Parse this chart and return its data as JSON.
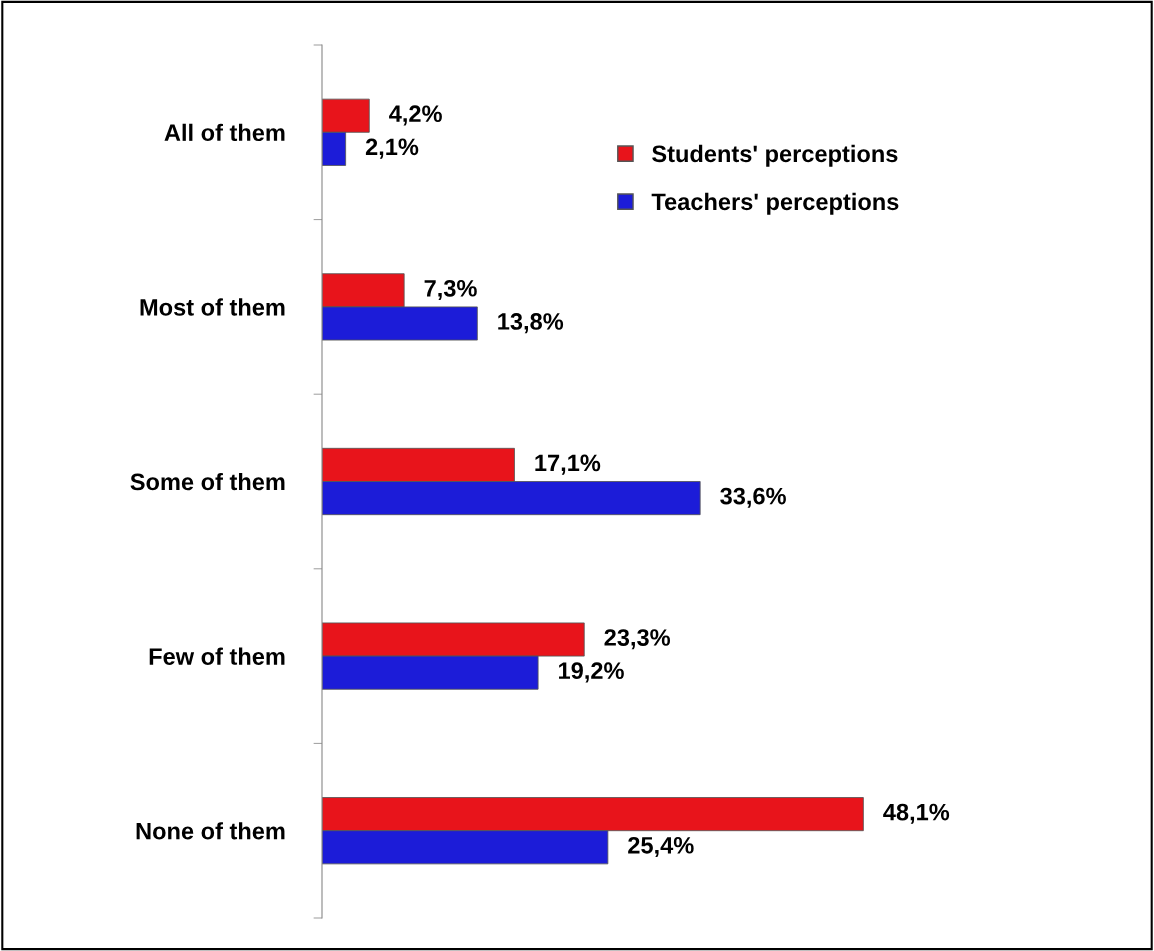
{
  "chart_data": {
    "type": "bar",
    "orientation": "horizontal",
    "categories": [
      "All of them",
      "Most of them",
      "Some of them",
      "Few of them",
      "None of them"
    ],
    "series": [
      {
        "name": "Students' perceptions",
        "color": "#e8141b",
        "values": [
          4.2,
          7.3,
          17.1,
          23.3,
          48.1
        ],
        "value_labels": [
          "4,2%",
          "7,3%",
          "17,1%",
          "23,3%",
          "48,1%"
        ]
      },
      {
        "name": "Teachers' perceptions",
        "color": "#1c1cd8",
        "values": [
          2.1,
          13.8,
          33.6,
          19.2,
          25.4
        ],
        "value_labels": [
          "2,1%",
          "13,8%",
          "33,6%",
          "19,2%",
          "25,4%"
        ]
      }
    ],
    "legend": "top right",
    "grid": false,
    "tick_labels": "y"
  }
}
